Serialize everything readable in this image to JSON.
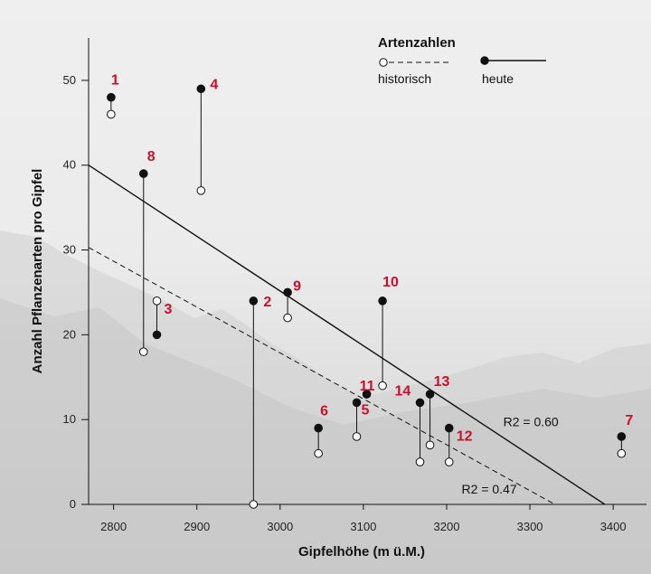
{
  "chart_data": {
    "type": "scatter",
    "xlabel": "Gipfelhöhe (m ü.M.)",
    "ylabel": "Anzahl Pflanzenarten pro Gipfel",
    "xlim": [
      2770,
      3440
    ],
    "ylim": [
      0,
      55
    ],
    "xticks": [
      2800,
      2900,
      3000,
      3100,
      3200,
      3300,
      3400
    ],
    "yticks": [
      0,
      10,
      20,
      30,
      40,
      50
    ],
    "legend": {
      "title": "Artenzahlen",
      "historic_label": "historisch",
      "today_label": "heute",
      "position": "top-right"
    },
    "peaks": [
      {
        "label": "1",
        "x": 2797,
        "historic": 46,
        "today": 48
      },
      {
        "label": "2",
        "x": 2968,
        "historic": 0,
        "today": 24
      },
      {
        "label": "3",
        "x": 2852,
        "historic": 24,
        "today": 20
      },
      {
        "label": "4",
        "x": 2905,
        "historic": 37,
        "today": 49
      },
      {
        "label": "5",
        "x": 3092,
        "historic": 8,
        "today": 12
      },
      {
        "label": "6",
        "x": 3046,
        "historic": 6,
        "today": 9
      },
      {
        "label": "7",
        "x": 3410,
        "historic": 6,
        "today": 8
      },
      {
        "label": "8",
        "x": 2836,
        "historic": 18,
        "today": 39
      },
      {
        "label": "9",
        "x": 3009,
        "historic": 22,
        "today": 25
      },
      {
        "label": "10",
        "x": 3123,
        "historic": 14,
        "today": 24
      },
      {
        "label": "11",
        "x": 3104,
        "historic": 13,
        "today": 13
      },
      {
        "label": "12",
        "x": 3203,
        "historic": 5,
        "today": 9
      },
      {
        "label": "13",
        "x": 3180,
        "historic": 7,
        "today": 13
      },
      {
        "label": "14",
        "x": 3168,
        "historic": 5,
        "today": 12
      }
    ],
    "regression": [
      {
        "name": "heute",
        "label": "R2 = 0.60",
        "style": "solid",
        "from": [
          2770,
          40
        ],
        "to": [
          3390,
          0
        ]
      },
      {
        "name": "historisch",
        "label": "R2 = 0.47",
        "style": "dashed",
        "from": [
          2770,
          30.3
        ],
        "to": [
          3330,
          0
        ]
      }
    ]
  }
}
